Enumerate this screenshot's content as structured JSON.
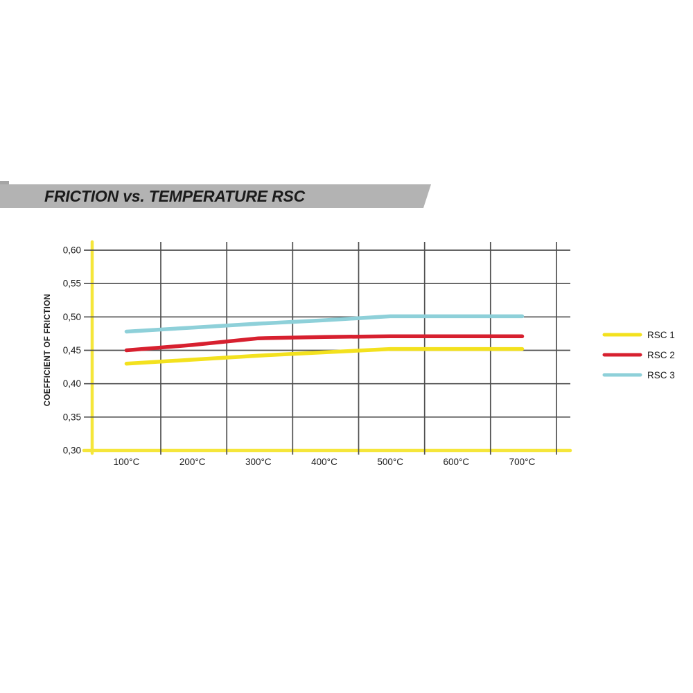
{
  "banner": {
    "title": "FRICTION vs. TEMPERATURE RSC"
  },
  "colors": {
    "banner_bg": "#b3b3b3",
    "banner_accent": "#a5a5a5",
    "title_text": "#1b1b1b",
    "axis_yellow": "#f5e63a",
    "grid": "#4f4f4f",
    "text": "#1a1a1a"
  },
  "chart_data": {
    "type": "line",
    "title": "FRICTION vs. TEMPERATURE RSC",
    "xlabel": "",
    "ylabel": "COEFFICIENT OF FRICTION",
    "grid": true,
    "legend_position": "right",
    "x": [
      100,
      200,
      300,
      400,
      500,
      600,
      700
    ],
    "x_tick_labels": [
      "100°C",
      "200°C",
      "300°C",
      "400°C",
      "500°C",
      "600°C",
      "700°C"
    ],
    "y_ticks": [
      0.6,
      0.55,
      0.5,
      0.45,
      0.4,
      0.35,
      0.3
    ],
    "y_tick_labels": [
      "0,60",
      "0,55",
      "0,50",
      "0,45",
      "0,40",
      "0,35",
      "0,30"
    ],
    "ylim": [
      0.3,
      0.625
    ],
    "series": [
      {
        "name": "RSC 1",
        "color": "#f3e11e",
        "values": [
          0.43,
          0.436,
          0.442,
          0.447,
          0.452,
          0.452,
          0.452
        ]
      },
      {
        "name": "RSC 2",
        "color": "#d7202f",
        "values": [
          0.45,
          0.458,
          0.468,
          0.47,
          0.471,
          0.471,
          0.471
        ]
      },
      {
        "name": "RSC 3",
        "color": "#8ed0d9",
        "values": [
          0.478,
          0.484,
          0.49,
          0.495,
          0.501,
          0.501,
          0.501
        ]
      }
    ]
  }
}
